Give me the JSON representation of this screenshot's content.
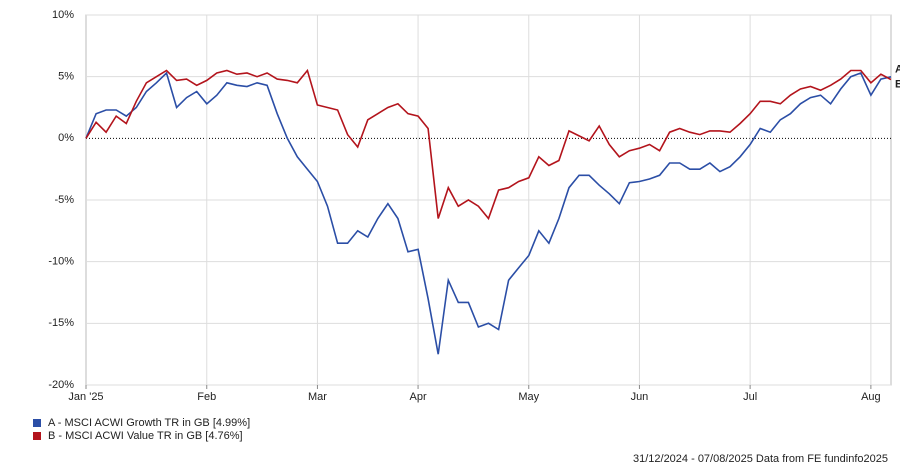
{
  "chart_data": {
    "type": "line",
    "categories": [
      "Jan '25",
      null,
      null,
      null,
      null,
      null,
      null,
      null,
      null,
      null,
      null,
      null,
      "Feb",
      null,
      null,
      null,
      null,
      null,
      null,
      null,
      null,
      null,
      null,
      "Mar",
      null,
      null,
      null,
      null,
      null,
      null,
      null,
      null,
      null,
      "Apr",
      null,
      null,
      null,
      null,
      null,
      null,
      null,
      null,
      null,
      null,
      "May",
      null,
      null,
      null,
      null,
      null,
      null,
      null,
      null,
      null,
      null,
      "Jun",
      null,
      null,
      null,
      null,
      null,
      null,
      null,
      null,
      null,
      null,
      "Jul",
      null,
      null,
      null,
      null,
      null,
      null,
      null,
      null,
      null,
      null,
      null,
      "Aug",
      null,
      null
    ],
    "series": [
      {
        "name": "A - MSCI ACWI Growth TR in GB [4.99%]",
        "end_label": "A",
        "color": "#2b4ea6",
        "values": [
          0,
          2.0,
          2.3,
          2.3,
          1.8,
          2.5,
          3.8,
          4.5,
          5.3,
          2.5,
          3.3,
          3.8,
          2.8,
          3.5,
          4.5,
          4.3,
          4.2,
          4.5,
          4.3,
          2.0,
          0,
          -1.5,
          -2.5,
          -3.5,
          -5.5,
          -8.5,
          -8.5,
          -7.5,
          -8.0,
          -6.5,
          -5.3,
          -6.5,
          -9.2,
          -9.0,
          -13,
          -17.5,
          -11.5,
          -13.3,
          -13.3,
          -15.3,
          -15.0,
          -15.5,
          -11.5,
          -10.5,
          -9.5,
          -7.5,
          -8.5,
          -6.5,
          -4.0,
          -3.0,
          -3.0,
          -3.8,
          -4.5,
          -5.3,
          -3.6,
          -3.5,
          -3.3,
          -3.0,
          -2.0,
          -2.0,
          -2.5,
          -2.5,
          -2.0,
          -2.7,
          -2.3,
          -1.5,
          -0.5,
          0.8,
          0.5,
          1.5,
          2.0,
          2.8,
          3.3,
          3.5,
          2.8,
          4.0,
          5.0,
          5.3,
          3.5,
          4.8,
          4.99
        ]
      },
      {
        "name": "B - MSCI ACWI Value TR in GB [4.76%]",
        "end_label": "B",
        "color": "#b3141c",
        "values": [
          0,
          1.3,
          0.5,
          1.8,
          1.2,
          3.0,
          4.5,
          5.0,
          5.5,
          4.7,
          4.8,
          4.3,
          4.7,
          5.3,
          5.5,
          5.2,
          5.3,
          5.0,
          5.3,
          4.8,
          4.7,
          4.5,
          5.5,
          2.7,
          2.5,
          2.3,
          0.3,
          -0.7,
          1.5,
          2.0,
          2.5,
          2.8,
          2.0,
          1.8,
          0.8,
          -6.5,
          -4.0,
          -5.5,
          -5.0,
          -5.5,
          -6.5,
          -4.2,
          -4.0,
          -3.5,
          -3.2,
          -1.5,
          -2.2,
          -1.8,
          0.6,
          0.2,
          -0.2,
          1.0,
          -0.5,
          -1.5,
          -1.0,
          -0.8,
          -0.5,
          -1.0,
          0.5,
          0.8,
          0.5,
          0.3,
          0.6,
          0.6,
          0.5,
          1.2,
          2.0,
          3.0,
          3.0,
          2.8,
          3.5,
          4.0,
          4.2,
          3.9,
          4.3,
          4.8,
          5.5,
          5.5,
          4.5,
          5.2,
          4.76
        ]
      }
    ],
    "ylim": [
      -20,
      10
    ],
    "yticks": [
      {
        "value": -20,
        "label": "-20%"
      },
      {
        "value": -15,
        "label": "-15%"
      },
      {
        "value": -10,
        "label": "-10%"
      },
      {
        "value": -5,
        "label": "-5%"
      },
      {
        "value": 0,
        "label": "0%"
      },
      {
        "value": 5,
        "label": "5%"
      },
      {
        "value": 10,
        "label": "10%"
      }
    ],
    "grid": true,
    "legend": "bottom-left",
    "source": "31/12/2024 - 07/08/2025 Data from FE fundinfo2025"
  }
}
